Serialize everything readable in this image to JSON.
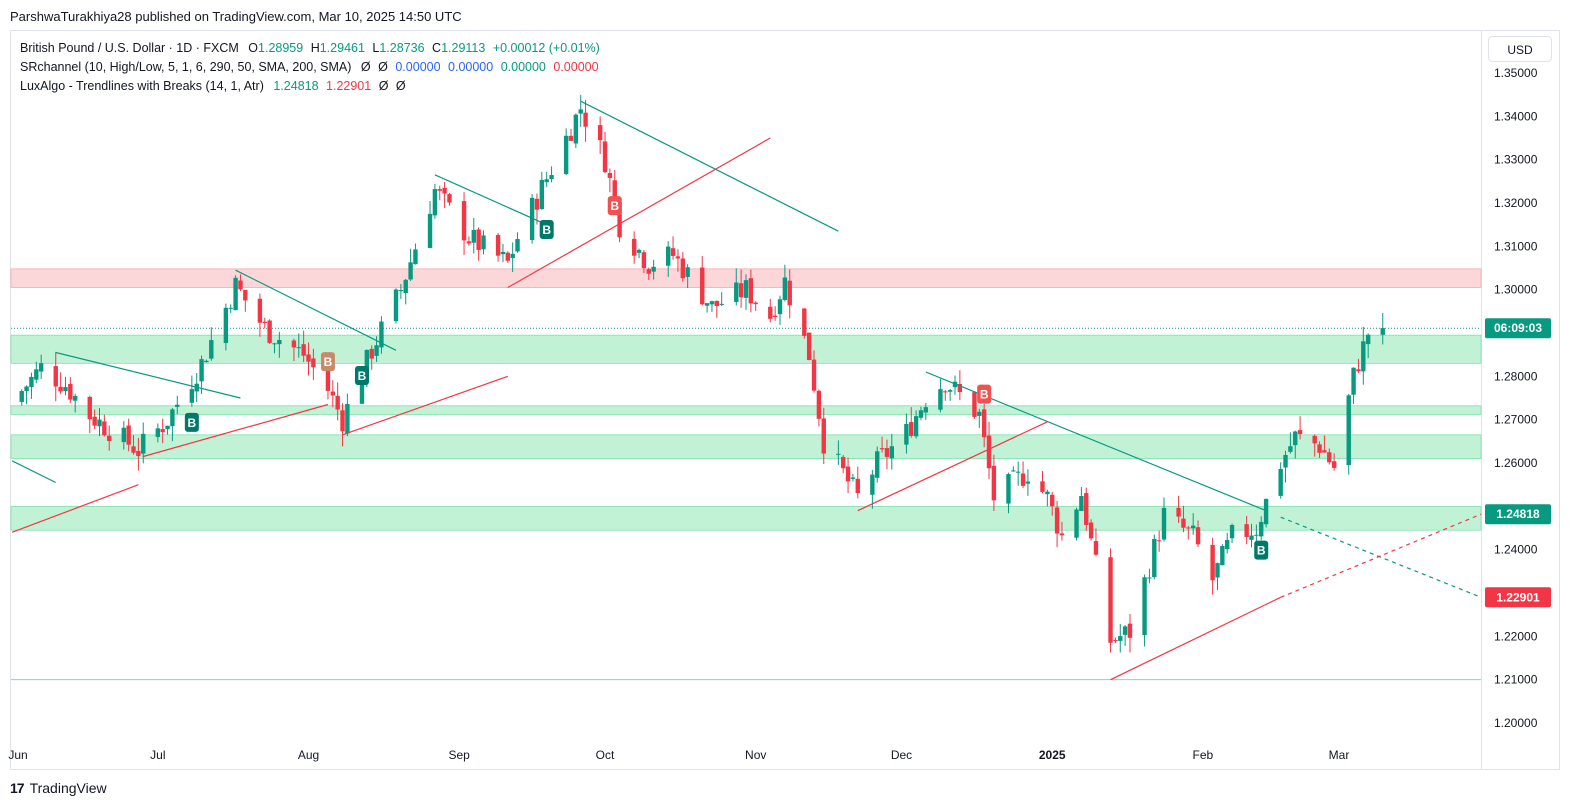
{
  "header": {
    "published": "ParshwaTurakhiya28 published on TradingView.com, Mar 10, 2025 14:50 UTC"
  },
  "legend": {
    "symbol": "British Pound / U.S. Dollar · 1D · FXCM",
    "o_label": "O",
    "o_value": "1.28959",
    "h_label": "H",
    "h_value": "1.29461",
    "l_label": "L",
    "l_value": "1.28736",
    "c_label": "C",
    "c_value": "1.29113",
    "change": "+0.00012 (+0.01%)",
    "sr_label": "SRchannel (10, High/Low, 5, 1, 6, 290, 50, SMA, 200, SMA)",
    "sr_null1": "Ø",
    "sr_null2": "Ø",
    "sr_v1": "0.00000",
    "sr_v2": "0.00000",
    "sr_v3": "0.00000",
    "sr_v4": "0.00000",
    "lux_label": "LuxAlgo - Trendlines with Breaks (14, 1, Atr)",
    "lux_v1": "1.24818",
    "lux_v2": "1.22901",
    "lux_null1": "Ø",
    "lux_null2": "Ø"
  },
  "currency_button": "USD",
  "footer": {
    "logo_mark": "17",
    "brand": "TradingView"
  },
  "colors": {
    "up": "#089981",
    "down": "#f23645",
    "support_zone": "#b7f0cf",
    "resistance_zone": "#fcd0d3",
    "trend_green": "#089981",
    "trend_red": "#f23645"
  },
  "chart_data": {
    "type": "candlestick",
    "symbol": "GBPUSD",
    "timeframe": "1D",
    "ylim": [
      1.195,
      1.355
    ],
    "y_ticks": [
      "1.35000",
      "1.34000",
      "1.33000",
      "1.32000",
      "1.31000",
      "1.30000",
      "1.28000",
      "1.27000",
      "1.26000",
      "1.24000",
      "1.22000",
      "1.21000",
      "1.20000"
    ],
    "x_labels": [
      "Jun",
      "Jul",
      "Aug",
      "Sep",
      "Oct",
      "Nov",
      "Dec",
      "2025",
      "Feb",
      "Mar"
    ],
    "price_tags": [
      {
        "label": "06:09:03",
        "value": 1.2911,
        "color": "#089981"
      },
      {
        "label": "1.24818",
        "value": 1.24818,
        "color": "#089981"
      },
      {
        "label": "1.22901",
        "value": 1.22901,
        "color": "#f23645"
      }
    ],
    "zones": [
      {
        "kind": "resistance",
        "from": 1.3005,
        "to": 1.3048
      },
      {
        "kind": "support",
        "from": 1.283,
        "to": 1.2895
      },
      {
        "kind": "support",
        "from": 1.2712,
        "to": 1.2732
      },
      {
        "kind": "support",
        "from": 1.261,
        "to": 1.2665
      },
      {
        "kind": "support",
        "from": 1.2445,
        "to": 1.25
      }
    ],
    "level_line": 1.21,
    "break_labels": [
      {
        "text": "B",
        "kind": "up",
        "date": "2024-07-08"
      },
      {
        "text": "B",
        "kind": "mixed",
        "date": "2024-08-05"
      },
      {
        "text": "B",
        "kind": "up",
        "date": "2024-08-12"
      },
      {
        "text": "B",
        "kind": "up",
        "date": "2024-09-19"
      },
      {
        "text": "B",
        "kind": "down",
        "date": "2024-10-03"
      },
      {
        "text": "B",
        "kind": "down",
        "date": "2024-12-18"
      },
      {
        "text": "B",
        "kind": "up",
        "date": "2025-02-13"
      }
    ],
    "candles_ohlc_summary": "daily GBPUSD candles Jun 2024 to Mar 10 2025; last O 1.28959 H 1.29461 L 1.28736 C 1.29113"
  }
}
